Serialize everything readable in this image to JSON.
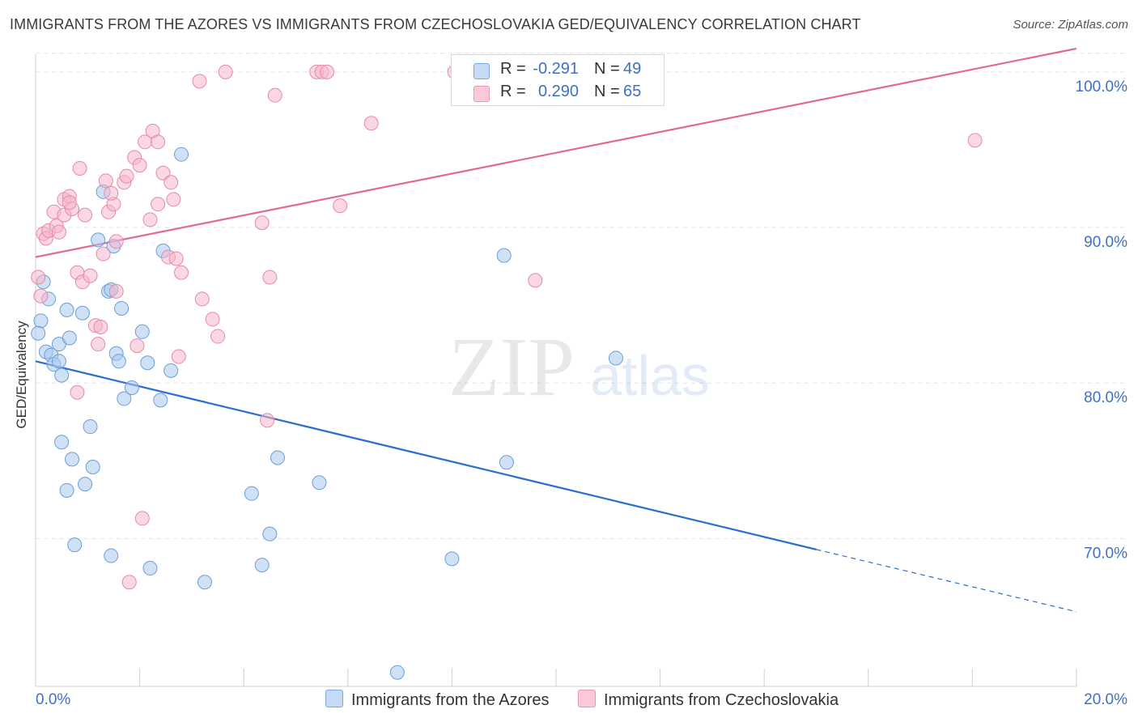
{
  "header": {
    "title": "IMMIGRANTS FROM THE AZORES VS IMMIGRANTS FROM CZECHOSLOVAKIA GED/EQUIVALENCY CORRELATION CHART",
    "source": "Source: ZipAtlas.com"
  },
  "watermark": {
    "zip": "ZIP",
    "atlas": "atlas"
  },
  "legend": {
    "rows": [
      {
        "r_label": "R =",
        "r_value": "-0.291",
        "n_label": "N =",
        "n_value": "49",
        "color": "#a9c8ef"
      },
      {
        "r_label": "R =",
        "r_value": "0.290",
        "n_label": "N =",
        "n_value": "65",
        "color": "#f6b6ca"
      }
    ]
  },
  "chart_data": {
    "type": "scatter",
    "ylabel": "GED/Equivalency",
    "xlim": [
      0,
      20
    ],
    "ylim": [
      60.5,
      101.5
    ],
    "x_tick_labels": [
      "0.0%",
      "20.0%"
    ],
    "y_ticks": [
      70,
      80,
      90,
      100
    ],
    "y_tick_labels": [
      "70.0%",
      "80.0%",
      "90.0%",
      "100.0%"
    ],
    "grid": true,
    "legend_position": "bottom",
    "series": [
      {
        "name": "Immigrants from the Azores",
        "color": "#a9c8ef",
        "stroke": "#6a9fd8",
        "line_color": "#2c6fcf",
        "trend": {
          "x0": 0,
          "y0": 81.4,
          "x1": 15.0,
          "y1": 69.3,
          "dash_x1": 20.0,
          "dash_y1": 65.3
        },
        "points": [
          [
            0.1,
            84.0
          ],
          [
            0.05,
            83.2
          ],
          [
            0.15,
            86.5
          ],
          [
            0.25,
            85.4
          ],
          [
            0.2,
            82.0
          ],
          [
            0.3,
            81.8
          ],
          [
            0.35,
            81.2
          ],
          [
            0.45,
            81.4
          ],
          [
            0.45,
            82.5
          ],
          [
            0.5,
            80.5
          ],
          [
            0.6,
            84.7
          ],
          [
            0.65,
            82.9
          ],
          [
            0.9,
            84.5
          ],
          [
            1.05,
            77.2
          ],
          [
            0.95,
            73.5
          ],
          [
            0.7,
            75.1
          ],
          [
            0.6,
            73.1
          ],
          [
            0.75,
            69.6
          ],
          [
            0.5,
            76.2
          ],
          [
            1.1,
            74.6
          ],
          [
            1.2,
            89.2
          ],
          [
            1.3,
            92.3
          ],
          [
            1.5,
            88.8
          ],
          [
            1.55,
            81.9
          ],
          [
            1.6,
            81.4
          ],
          [
            1.7,
            79.0
          ],
          [
            1.65,
            84.8
          ],
          [
            1.85,
            79.7
          ],
          [
            1.4,
            85.9
          ],
          [
            1.45,
            86.0
          ],
          [
            1.45,
            68.9
          ],
          [
            2.05,
            83.3
          ],
          [
            2.15,
            81.3
          ],
          [
            2.2,
            68.1
          ],
          [
            2.4,
            78.9
          ],
          [
            2.45,
            88.5
          ],
          [
            2.6,
            80.8
          ],
          [
            2.8,
            94.7
          ],
          [
            3.25,
            67.2
          ],
          [
            4.15,
            72.9
          ],
          [
            4.35,
            68.3
          ],
          [
            4.5,
            70.3
          ],
          [
            4.65,
            75.2
          ],
          [
            5.45,
            73.6
          ],
          [
            6.95,
            61.4
          ],
          [
            8.0,
            68.7
          ],
          [
            9.0,
            88.2
          ],
          [
            9.05,
            74.9
          ],
          [
            11.15,
            81.6
          ]
        ]
      },
      {
        "name": "Immigrants from Czechoslovakia",
        "color": "#f6b6ca",
        "stroke": "#e58aa8",
        "line_color": "#e0699a",
        "trend": {
          "x0": 0,
          "y0": 88.1,
          "x1": 20.0,
          "y1": 101.5
        },
        "points": [
          [
            0.05,
            86.8
          ],
          [
            0.1,
            85.6
          ],
          [
            0.15,
            89.6
          ],
          [
            0.2,
            89.3
          ],
          [
            0.25,
            89.8
          ],
          [
            0.35,
            91.0
          ],
          [
            0.4,
            90.1
          ],
          [
            0.45,
            89.7
          ],
          [
            0.55,
            90.8
          ],
          [
            0.55,
            91.8
          ],
          [
            0.65,
            92.0
          ],
          [
            0.7,
            91.2
          ],
          [
            0.8,
            87.1
          ],
          [
            0.85,
            93.8
          ],
          [
            0.9,
            86.5
          ],
          [
            0.95,
            90.8
          ],
          [
            1.05,
            86.9
          ],
          [
            1.15,
            83.7
          ],
          [
            1.2,
            82.5
          ],
          [
            1.25,
            83.6
          ],
          [
            1.3,
            88.3
          ],
          [
            1.4,
            91.0
          ],
          [
            1.35,
            93.0
          ],
          [
            1.5,
            91.5
          ],
          [
            1.45,
            92.2
          ],
          [
            1.55,
            89.1
          ],
          [
            1.55,
            85.9
          ],
          [
            1.7,
            92.9
          ],
          [
            1.75,
            93.3
          ],
          [
            1.9,
            94.5
          ],
          [
            1.95,
            82.4
          ],
          [
            2.0,
            94.0
          ],
          [
            2.05,
            71.3
          ],
          [
            2.1,
            95.5
          ],
          [
            2.2,
            90.5
          ],
          [
            2.25,
            96.2
          ],
          [
            2.35,
            95.5
          ],
          [
            2.35,
            91.5
          ],
          [
            2.45,
            93.5
          ],
          [
            2.55,
            88.1
          ],
          [
            2.6,
            92.9
          ],
          [
            2.65,
            91.8
          ],
          [
            2.7,
            88.0
          ],
          [
            2.8,
            87.1
          ],
          [
            2.75,
            81.7
          ],
          [
            1.8,
            67.2
          ],
          [
            0.8,
            79.4
          ],
          [
            3.15,
            99.4
          ],
          [
            3.2,
            85.4
          ],
          [
            3.4,
            84.1
          ],
          [
            3.5,
            83.0
          ],
          [
            3.65,
            100.0
          ],
          [
            4.35,
            90.3
          ],
          [
            4.45,
            77.6
          ],
          [
            4.5,
            86.8
          ],
          [
            4.6,
            98.5
          ],
          [
            5.4,
            100.0
          ],
          [
            5.5,
            100.0
          ],
          [
            5.6,
            100.0
          ],
          [
            5.85,
            91.4
          ],
          [
            6.45,
            96.7
          ],
          [
            8.05,
            100.0
          ],
          [
            9.6,
            86.6
          ],
          [
            18.05,
            95.6
          ],
          [
            0.65,
            91.6
          ]
        ]
      }
    ]
  }
}
